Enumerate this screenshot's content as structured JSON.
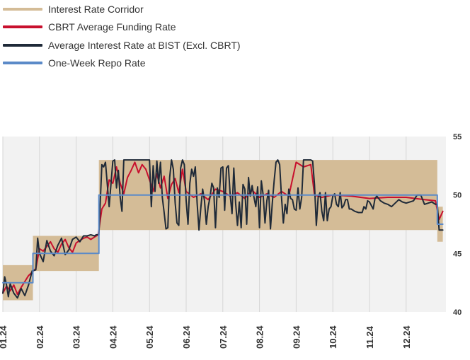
{
  "legend": [
    {
      "label": "Interest Rate Corridor",
      "color": "#d4bc97"
    },
    {
      "label": "CBRT Average Funding Rate",
      "color": "#c8102e"
    },
    {
      "label": "Average Interest Rate at BIST (Excl. CBRT)",
      "color": "#1f2a38"
    },
    {
      "label": "One-Week Repo Rate",
      "color": "#5b8ac8"
    }
  ],
  "chart_data": {
    "type": "line",
    "title": "",
    "xlabel": "",
    "ylabel": "",
    "x_ticks": [
      "01.24",
      "02.24",
      "03.24",
      "04.24",
      "05.24",
      "06.24",
      "07.24",
      "08.24",
      "09.24",
      "10.24",
      "11.24",
      "12.24"
    ],
    "y_ticks": [
      40,
      45,
      50,
      55
    ],
    "ylim": [
      40,
      55
    ],
    "xlim": [
      0,
      12.2
    ],
    "y_axis_position": "right",
    "grid": "vertical",
    "corridor": [
      {
        "x": 0.0,
        "low": 41.0,
        "high": 44.0
      },
      {
        "x": 0.82,
        "low": 41.0,
        "high": 44.0
      },
      {
        "x": 0.82,
        "low": 43.5,
        "high": 46.5
      },
      {
        "x": 2.62,
        "low": 43.5,
        "high": 46.5
      },
      {
        "x": 2.62,
        "low": 47.0,
        "high": 53.0
      },
      {
        "x": 11.85,
        "low": 47.0,
        "high": 53.0
      },
      {
        "x": 11.85,
        "low": 46.0,
        "high": 49.0
      },
      {
        "x": 12.0,
        "low": 46.0,
        "high": 49.0
      }
    ],
    "series": [
      {
        "name": "One-Week Repo Rate",
        "color": "#5b8ac8",
        "points": [
          [
            0.0,
            42.5
          ],
          [
            0.82,
            42.5
          ],
          [
            0.82,
            45.0
          ],
          [
            2.62,
            45.0
          ],
          [
            2.62,
            50.0
          ],
          [
            11.85,
            50.0
          ],
          [
            11.85,
            47.5
          ],
          [
            12.0,
            47.5
          ]
        ]
      },
      {
        "name": "CBRT Average Funding Rate",
        "color": "#c8102e",
        "points": [
          [
            0.0,
            41.6
          ],
          [
            0.1,
            42.2
          ],
          [
            0.2,
            41.8
          ],
          [
            0.3,
            42.3
          ],
          [
            0.4,
            41.5
          ],
          [
            0.5,
            42.1
          ],
          [
            0.6,
            42.6
          ],
          [
            0.7,
            43.1
          ],
          [
            0.8,
            43.4
          ],
          [
            0.9,
            43.7
          ],
          [
            1.0,
            45.4
          ],
          [
            1.1,
            45.2
          ],
          [
            1.2,
            45.6
          ],
          [
            1.3,
            46.0
          ],
          [
            1.4,
            45.4
          ],
          [
            1.5,
            45.1
          ],
          [
            1.6,
            45.8
          ],
          [
            1.7,
            46.2
          ],
          [
            1.8,
            45.5
          ],
          [
            1.9,
            45.1
          ],
          [
            2.0,
            45.9
          ],
          [
            2.1,
            46.1
          ],
          [
            2.2,
            46.3
          ],
          [
            2.3,
            46.4
          ],
          [
            2.4,
            46.2
          ],
          [
            2.5,
            46.4
          ],
          [
            2.6,
            46.6
          ],
          [
            2.7,
            48.8
          ],
          [
            2.8,
            49.3
          ],
          [
            2.9,
            51.3
          ],
          [
            3.0,
            51.0
          ],
          [
            3.1,
            52.4
          ],
          [
            3.2,
            51.0
          ],
          [
            3.3,
            50.1
          ],
          [
            3.4,
            51.5
          ],
          [
            3.5,
            52.1
          ],
          [
            3.6,
            52.8
          ],
          [
            3.7,
            51.9
          ],
          [
            3.8,
            52.6
          ],
          [
            3.9,
            52.2
          ],
          [
            4.0,
            51.3
          ],
          [
            4.1,
            50.3
          ],
          [
            4.2,
            51.8
          ],
          [
            4.3,
            50.6
          ],
          [
            4.4,
            51.6
          ],
          [
            4.5,
            49.7
          ],
          [
            4.6,
            50.9
          ],
          [
            4.7,
            51.4
          ],
          [
            4.8,
            50.2
          ],
          [
            4.9,
            52.2
          ],
          [
            5.0,
            50.3
          ],
          [
            5.2,
            49.8
          ],
          [
            5.4,
            50.1
          ],
          [
            5.6,
            49.6
          ],
          [
            5.8,
            50.5
          ],
          [
            6.0,
            50.3
          ],
          [
            6.2,
            49.9
          ],
          [
            6.4,
            50.2
          ],
          [
            6.6,
            49.7
          ],
          [
            6.8,
            50.4
          ],
          [
            7.0,
            49.8
          ],
          [
            7.2,
            50.1
          ],
          [
            7.4,
            49.8
          ],
          [
            7.6,
            50.3
          ],
          [
            7.8,
            49.9
          ],
          [
            8.0,
            52.8
          ],
          [
            8.2,
            52.4
          ],
          [
            8.4,
            52.6
          ],
          [
            8.5,
            50.0
          ],
          [
            8.7,
            49.8
          ],
          [
            9.0,
            50.0
          ],
          [
            9.5,
            49.9
          ],
          [
            10.0,
            49.7
          ],
          [
            10.5,
            49.8
          ],
          [
            11.0,
            49.8
          ],
          [
            11.5,
            49.6
          ],
          [
            11.8,
            49.5
          ],
          [
            11.9,
            47.9
          ],
          [
            12.0,
            48.6
          ]
        ]
      },
      {
        "name": "Average Interest Rate at BIST (Excl. CBRT)",
        "color": "#1f2a38",
        "points": [
          [
            0.0,
            41.6
          ],
          [
            0.05,
            43.0
          ],
          [
            0.1,
            42.3
          ],
          [
            0.15,
            41.3
          ],
          [
            0.2,
            42.4
          ],
          [
            0.3,
            41.6
          ],
          [
            0.4,
            41.2
          ],
          [
            0.5,
            42.0
          ],
          [
            0.6,
            41.4
          ],
          [
            0.7,
            42.3
          ],
          [
            0.8,
            43.5
          ],
          [
            0.9,
            43.6
          ],
          [
            0.95,
            46.3
          ],
          [
            1.0,
            45.0
          ],
          [
            1.1,
            44.3
          ],
          [
            1.2,
            46.1
          ],
          [
            1.3,
            45.2
          ],
          [
            1.4,
            44.8
          ],
          [
            1.5,
            45.7
          ],
          [
            1.6,
            46.3
          ],
          [
            1.7,
            44.9
          ],
          [
            1.8,
            45.3
          ],
          [
            1.9,
            46.2
          ],
          [
            2.0,
            46.4
          ],
          [
            2.1,
            46.0
          ],
          [
            2.2,
            46.5
          ],
          [
            2.3,
            46.5
          ],
          [
            2.4,
            46.6
          ],
          [
            2.5,
            46.5
          ],
          [
            2.55,
            46.6
          ],
          [
            2.62,
            46.6
          ],
          [
            2.7,
            52.6
          ],
          [
            2.75,
            52.4
          ],
          [
            2.8,
            52.8
          ],
          [
            2.9,
            49.0
          ],
          [
            3.0,
            52.9
          ],
          [
            3.05,
            53.0
          ],
          [
            3.1,
            50.6
          ],
          [
            3.15,
            52.1
          ],
          [
            3.2,
            49.8
          ],
          [
            3.25,
            48.6
          ],
          [
            3.3,
            53.0
          ],
          [
            3.4,
            53.0
          ],
          [
            3.5,
            53.0
          ],
          [
            3.6,
            53.0
          ],
          [
            3.7,
            53.0
          ],
          [
            3.8,
            53.0
          ],
          [
            3.9,
            53.0
          ],
          [
            4.0,
            53.0
          ],
          [
            4.05,
            49.0
          ],
          [
            4.1,
            52.5
          ],
          [
            4.15,
            50.3
          ],
          [
            4.2,
            52.9
          ],
          [
            4.25,
            51.0
          ],
          [
            4.3,
            52.8
          ],
          [
            4.35,
            49.8
          ],
          [
            4.4,
            48.5
          ],
          [
            4.45,
            47.1
          ],
          [
            4.5,
            47.2
          ],
          [
            4.55,
            51.5
          ],
          [
            4.6,
            53.0
          ],
          [
            4.65,
            52.2
          ],
          [
            4.7,
            49.3
          ],
          [
            4.75,
            47.6
          ],
          [
            4.8,
            47.4
          ],
          [
            4.85,
            52.3
          ],
          [
            4.9,
            53.0
          ],
          [
            4.95,
            52.6
          ],
          [
            5.0,
            49.5
          ],
          [
            5.05,
            47.5
          ],
          [
            5.1,
            51.0
          ],
          [
            5.15,
            52.2
          ],
          [
            5.2,
            51.6
          ],
          [
            5.25,
            52.4
          ],
          [
            5.3,
            49.3
          ],
          [
            5.35,
            47.0
          ],
          [
            5.4,
            48.9
          ],
          [
            5.45,
            50.5
          ],
          [
            5.5,
            49.5
          ],
          [
            5.55,
            47.5
          ],
          [
            5.6,
            49.0
          ],
          [
            5.65,
            49.8
          ],
          [
            5.7,
            51.0
          ],
          [
            5.75,
            50.6
          ],
          [
            5.8,
            47.2
          ],
          [
            5.85,
            50.6
          ],
          [
            5.9,
            49.8
          ],
          [
            5.95,
            52.3
          ],
          [
            6.0,
            52.4
          ],
          [
            6.05,
            48.7
          ],
          [
            6.1,
            52.3
          ],
          [
            6.15,
            52.5
          ],
          [
            6.2,
            50.0
          ],
          [
            6.25,
            48.4
          ],
          [
            6.3,
            52.3
          ],
          [
            6.35,
            49.3
          ],
          [
            6.4,
            47.4
          ],
          [
            6.45,
            49.4
          ],
          [
            6.5,
            47.2
          ],
          [
            6.55,
            50.9
          ],
          [
            6.6,
            50.5
          ],
          [
            6.65,
            47.5
          ],
          [
            6.7,
            51.5
          ],
          [
            6.75,
            49.9
          ],
          [
            6.8,
            50.8
          ],
          [
            6.85,
            49.8
          ],
          [
            6.9,
            49.0
          ],
          [
            6.95,
            50.7
          ],
          [
            7.0,
            47.2
          ],
          [
            7.05,
            51.2
          ],
          [
            7.1,
            50.0
          ],
          [
            7.15,
            47.6
          ],
          [
            7.2,
            49.5
          ],
          [
            7.25,
            50.4
          ],
          [
            7.3,
            47.1
          ],
          [
            7.35,
            49.3
          ],
          [
            7.4,
            51.2
          ],
          [
            7.45,
            52.8
          ],
          [
            7.5,
            53.0
          ],
          [
            7.55,
            52.6
          ],
          [
            7.6,
            49.8
          ],
          [
            7.65,
            47.6
          ],
          [
            7.7,
            49.2
          ],
          [
            7.75,
            48.4
          ],
          [
            7.8,
            50.5
          ],
          [
            7.85,
            49.7
          ],
          [
            7.9,
            49.6
          ],
          [
            7.95,
            48.8
          ],
          [
            8.0,
            48.7
          ],
          [
            8.05,
            50.6
          ],
          [
            8.1,
            48.8
          ],
          [
            8.15,
            49.8
          ],
          [
            8.2,
            53.0
          ],
          [
            8.3,
            53.0
          ],
          [
            8.4,
            53.0
          ],
          [
            8.45,
            52.9
          ],
          [
            8.5,
            50.9
          ],
          [
            8.55,
            47.4
          ],
          [
            8.6,
            49.8
          ],
          [
            8.65,
            50.2
          ],
          [
            8.7,
            48.6
          ],
          [
            8.75,
            47.8
          ],
          [
            8.8,
            50.2
          ],
          [
            8.85,
            47.8
          ],
          [
            8.9,
            48.8
          ],
          [
            8.95,
            49.0
          ],
          [
            9.0,
            49.9
          ],
          [
            9.05,
            50.1
          ],
          [
            9.1,
            49.2
          ],
          [
            9.15,
            49.0
          ],
          [
            9.2,
            50.2
          ],
          [
            9.25,
            48.9
          ],
          [
            9.3,
            49.1
          ],
          [
            9.35,
            49.6
          ],
          [
            9.4,
            49.6
          ],
          [
            9.45,
            48.8
          ],
          [
            9.5,
            48.8
          ],
          [
            9.6,
            48.6
          ],
          [
            9.7,
            48.5
          ],
          [
            9.8,
            48.5
          ],
          [
            9.85,
            49.0
          ],
          [
            9.9,
            48.8
          ],
          [
            9.95,
            49.5
          ],
          [
            10.0,
            49.4
          ],
          [
            10.05,
            49.1
          ],
          [
            10.1,
            48.8
          ],
          [
            10.15,
            49.7
          ],
          [
            10.2,
            49.9
          ],
          [
            10.3,
            49.5
          ],
          [
            10.4,
            49.3
          ],
          [
            10.5,
            49.2
          ],
          [
            10.6,
            49.0
          ],
          [
            10.7,
            49.3
          ],
          [
            10.8,
            49.6
          ],
          [
            10.9,
            49.4
          ],
          [
            11.0,
            49.3
          ],
          [
            11.1,
            49.4
          ],
          [
            11.2,
            49.5
          ],
          [
            11.3,
            50.0
          ],
          [
            11.4,
            50.0
          ],
          [
            11.5,
            49.2
          ],
          [
            11.6,
            49.3
          ],
          [
            11.7,
            49.4
          ],
          [
            11.8,
            49.2
          ],
          [
            11.85,
            49.2
          ],
          [
            11.9,
            47.0
          ],
          [
            12.0,
            47.0
          ]
        ]
      }
    ]
  }
}
